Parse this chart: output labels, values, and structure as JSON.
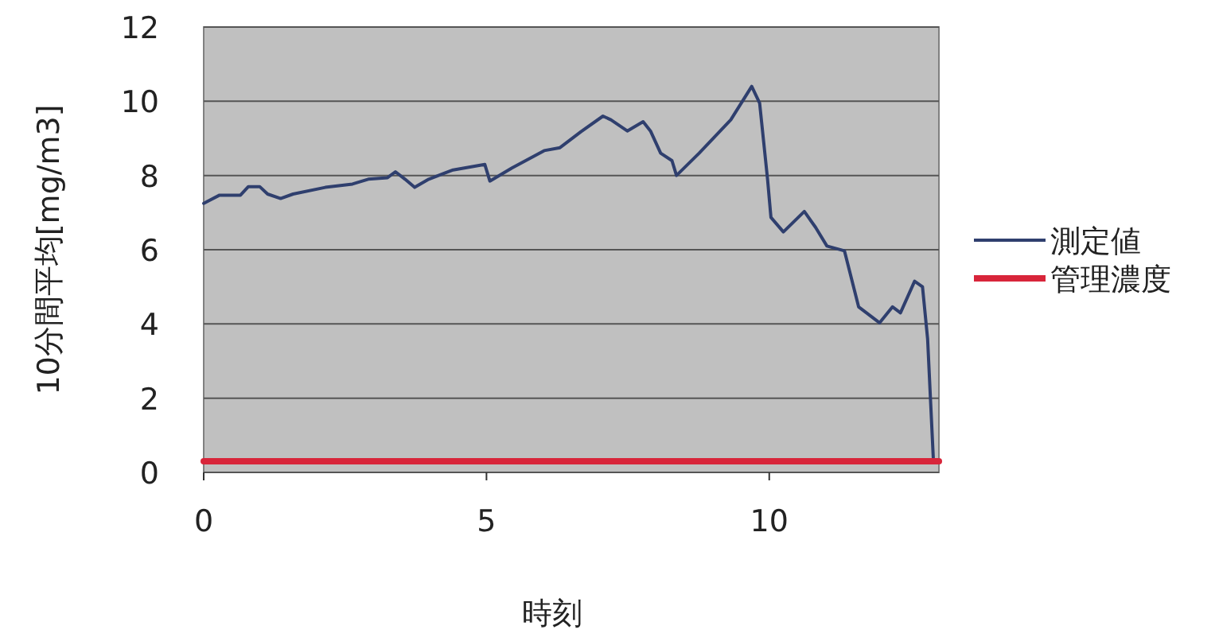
{
  "chart_data": {
    "type": "line",
    "xlabel": "時刻",
    "ylabel": "10分間平均[mg/m3]",
    "xlim": [
      0,
      13
    ],
    "ylim": [
      0,
      12
    ],
    "xticks": [
      0,
      5,
      10
    ],
    "yticks": [
      0,
      2,
      4,
      6,
      8,
      10,
      12
    ],
    "grid": "y",
    "legend": "right",
    "series": [
      {
        "name": "測定値",
        "color": "#2f3f6e",
        "x": [
          0,
          0.28,
          0.65,
          0.79,
          0.99,
          1.13,
          1.36,
          1.58,
          2.15,
          2.63,
          2.91,
          3.25,
          3.39,
          3.56,
          3.73,
          3.98,
          4.27,
          4.41,
          4.97,
          5.06,
          5.45,
          6.02,
          6.3,
          6.67,
          7.06,
          7.2,
          7.49,
          7.77,
          7.9,
          8.08,
          8.28,
          8.36,
          8.76,
          9.32,
          9.69,
          9.83,
          9.97,
          10.03,
          10.25,
          10.62,
          10.82,
          11.02,
          11.33,
          11.58,
          11.95,
          12.18,
          12.32,
          12.57,
          12.71,
          12.8,
          12.9
        ],
        "values": [
          7.25,
          7.47,
          7.47,
          7.7,
          7.7,
          7.5,
          7.38,
          7.5,
          7.68,
          7.77,
          7.9,
          7.94,
          8.1,
          7.9,
          7.68,
          7.9,
          8.07,
          8.15,
          8.3,
          7.85,
          8.2,
          8.67,
          8.75,
          9.18,
          9.6,
          9.5,
          9.2,
          9.45,
          9.2,
          8.6,
          8.4,
          8.0,
          8.6,
          9.5,
          10.4,
          9.95,
          7.9,
          6.87,
          6.48,
          7.03,
          6.6,
          6.1,
          5.97,
          4.46,
          4.03,
          4.46,
          4.3,
          5.15,
          5.0,
          3.6,
          0.4
        ]
      },
      {
        "name": "管理濃度",
        "color": "#d8253a",
        "x": [
          0,
          13
        ],
        "values": [
          0.3,
          0.3
        ]
      }
    ]
  }
}
